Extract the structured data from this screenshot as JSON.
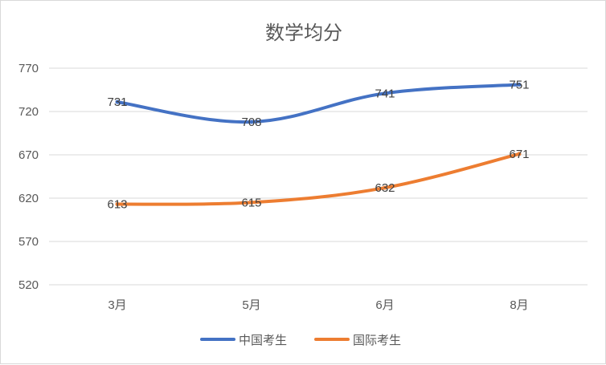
{
  "chart_data": {
    "type": "line",
    "title": "数学均分",
    "categories": [
      "3月",
      "5月",
      "6月",
      "8月"
    ],
    "series": [
      {
        "name": "中国考生",
        "values": [
          731,
          708,
          741,
          751
        ],
        "color": "#4472C4"
      },
      {
        "name": "国际考生",
        "values": [
          613,
          615,
          632,
          671
        ],
        "color": "#ED7D31"
      }
    ],
    "xlabel": "",
    "ylabel": "",
    "ylim": [
      520,
      770
    ],
    "yticks": [
      520,
      570,
      620,
      670,
      720,
      770
    ],
    "grid": true,
    "legend": "bottom",
    "data_labels": true
  }
}
